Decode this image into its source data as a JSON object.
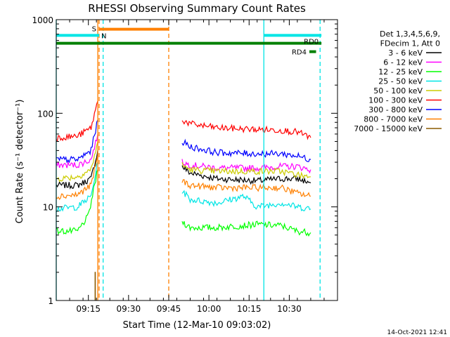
{
  "chart_data": {
    "type": "line",
    "title": "RHESSI Observing Summary Count Rates",
    "xlabel": "Start Time (12-Mar-10 09:03:02)",
    "ylabel": "Count Rate (s⁻¹ detector⁻¹)",
    "yscale": "log",
    "ylim": [
      1,
      1000
    ],
    "xlim_minutes": [
      0,
      105
    ],
    "x_ticks": [
      {
        "label": "09:15",
        "t": 12
      },
      {
        "label": "09:30",
        "t": 27
      },
      {
        "label": "09:45",
        "t": 42
      },
      {
        "label": "10:00",
        "t": 57
      },
      {
        "label": "10:15",
        "t": 72
      },
      {
        "label": "10:30",
        "t": 87
      }
    ],
    "y_ticks": [
      {
        "label": "1",
        "v": 1
      },
      {
        "label": "10",
        "v": 10
      },
      {
        "label": "100",
        "v": 100
      },
      {
        "label": "1000",
        "v": 1000
      }
    ],
    "legend": {
      "placement": "right",
      "header": [
        "Det 1,3,4,5,6,9,",
        "FDecim 1, Att 0"
      ]
    },
    "series": [
      {
        "name": "3 - 6 keV",
        "color": "#000000",
        "segments": [
          [
            [
              0,
              17
            ],
            [
              8,
              17
            ],
            [
              13,
              20
            ],
            [
              15.5,
              40
            ]
          ],
          [
            [
              47,
              27
            ],
            [
              50,
              23
            ],
            [
              60,
              20
            ],
            [
              75,
              19
            ],
            [
              84,
              20
            ],
            [
              90,
              20
            ],
            [
              95,
              18
            ]
          ]
        ]
      },
      {
        "name": "6 - 12 keV",
        "color": "#ff00ff",
        "segments": [
          [
            [
              0,
              28
            ],
            [
              8,
              28
            ],
            [
              13,
              32
            ],
            [
              15.5,
              60
            ]
          ],
          [
            [
              47,
              30
            ],
            [
              50,
              28
            ],
            [
              60,
              26
            ],
            [
              75,
              26
            ],
            [
              84,
              27
            ],
            [
              90,
              27
            ],
            [
              95,
              25
            ]
          ]
        ]
      },
      {
        "name": "12 - 25 keV",
        "color": "#00ff00",
        "segments": [
          [
            [
              0,
              5.5
            ],
            [
              8,
              5.5
            ],
            [
              12,
              8
            ],
            [
              15.5,
              25
            ]
          ],
          [
            [
              47,
              7
            ],
            [
              50,
              6
            ],
            [
              60,
              6
            ],
            [
              75,
              6.5
            ],
            [
              84,
              6.3
            ],
            [
              90,
              5.5
            ],
            [
              95,
              5.3
            ]
          ]
        ]
      },
      {
        "name": "25 - 50 keV",
        "color": "#00e5e5",
        "segments": [
          [
            [
              0,
              9.5
            ],
            [
              8,
              10
            ],
            [
              13,
              13
            ],
            [
              15.5,
              30
            ]
          ],
          [
            [
              47,
              15
            ],
            [
              50,
              12
            ],
            [
              60,
              11
            ],
            [
              70,
              13
            ],
            [
              75,
              10
            ],
            [
              84,
              11
            ],
            [
              90,
              10
            ],
            [
              95,
              9.5
            ]
          ]
        ]
      },
      {
        "name": "50 - 100 keV",
        "color": "#cccc00",
        "segments": [
          [
            [
              0,
              20
            ],
            [
              8,
              21
            ],
            [
              13,
              25
            ],
            [
              15.5,
              50
            ]
          ],
          [
            [
              47,
              28
            ],
            [
              50,
              25
            ],
            [
              60,
              24
            ],
            [
              75,
              24
            ],
            [
              84,
              24
            ],
            [
              90,
              22
            ],
            [
              95,
              21
            ]
          ]
        ]
      },
      {
        "name": "100 - 300 keV",
        "color": "#ff0000",
        "segments": [
          [
            [
              0,
              55
            ],
            [
              8,
              57
            ],
            [
              13,
              70
            ],
            [
              15.5,
              135
            ]
          ],
          [
            [
              47,
              85
            ],
            [
              50,
              77
            ],
            [
              60,
              70
            ],
            [
              75,
              67
            ],
            [
              84,
              66
            ],
            [
              90,
              63
            ],
            [
              95,
              55
            ]
          ]
        ]
      },
      {
        "name": "300 - 800 keV",
        "color": "#0000ff",
        "segments": [
          [
            [
              0,
              32
            ],
            [
              8,
              32
            ],
            [
              13,
              40
            ],
            [
              15.5,
              85
            ]
          ],
          [
            [
              47,
              50
            ],
            [
              50,
              44
            ],
            [
              60,
              38
            ],
            [
              75,
              37
            ],
            [
              84,
              37
            ],
            [
              90,
              35
            ],
            [
              95,
              32
            ]
          ]
        ]
      },
      {
        "name": "800 - 7000 keV",
        "color": "#ff8000",
        "segments": [
          [
            [
              0,
              13
            ],
            [
              8,
              13.5
            ],
            [
              13,
              17
            ],
            [
              15.5,
              35
            ]
          ],
          [
            [
              47,
              19
            ],
            [
              50,
              17
            ],
            [
              60,
              16
            ],
            [
              75,
              16
            ],
            [
              84,
              16
            ],
            [
              90,
              14
            ],
            [
              95,
              13
            ]
          ]
        ]
      },
      {
        "name": "7000 - 15000 keV",
        "color": "#8b5a00",
        "segments": [
          [
            [
              14.5,
              1
            ],
            [
              14.5,
              2
            ],
            [
              14.6,
              2
            ],
            [
              14.6,
              1
            ]
          ]
        ]
      }
    ],
    "flag_bars": [
      {
        "label": "S",
        "color": "#ff8000",
        "t0": 16,
        "t1": 42,
        "level": 790
      },
      {
        "label": "N",
        "color": "#00e5e5",
        "t0": 0,
        "t1": 16,
        "level": 680
      },
      {
        "label": "",
        "color": "#00e5e5",
        "t0": 77.5,
        "t1": 99,
        "level": 680
      },
      {
        "label": "RD0",
        "color": "#008000",
        "t0": 0,
        "t1": 99,
        "level": 560
      },
      {
        "label": "RD4",
        "color": "#008000",
        "t0": 94.5,
        "t1": 97,
        "level": 455
      }
    ],
    "vlines": [
      {
        "t": 0,
        "color": "#00e5e5",
        "style": "solid"
      },
      {
        "t": 15.5,
        "color": "#ff8000",
        "style": "solid"
      },
      {
        "t": 16,
        "color": "#ff8000",
        "style": "dashed"
      },
      {
        "t": 17.5,
        "color": "#00e5e5",
        "style": "dashed"
      },
      {
        "t": 42,
        "color": "#ff8000",
        "style": "dashed"
      },
      {
        "t": 77.5,
        "color": "#00e5e5",
        "style": "solid"
      },
      {
        "t": 98.5,
        "color": "#00e5e5",
        "style": "dashed"
      }
    ]
  },
  "footer": {
    "timestamp": "14-Oct-2021 12:41"
  }
}
